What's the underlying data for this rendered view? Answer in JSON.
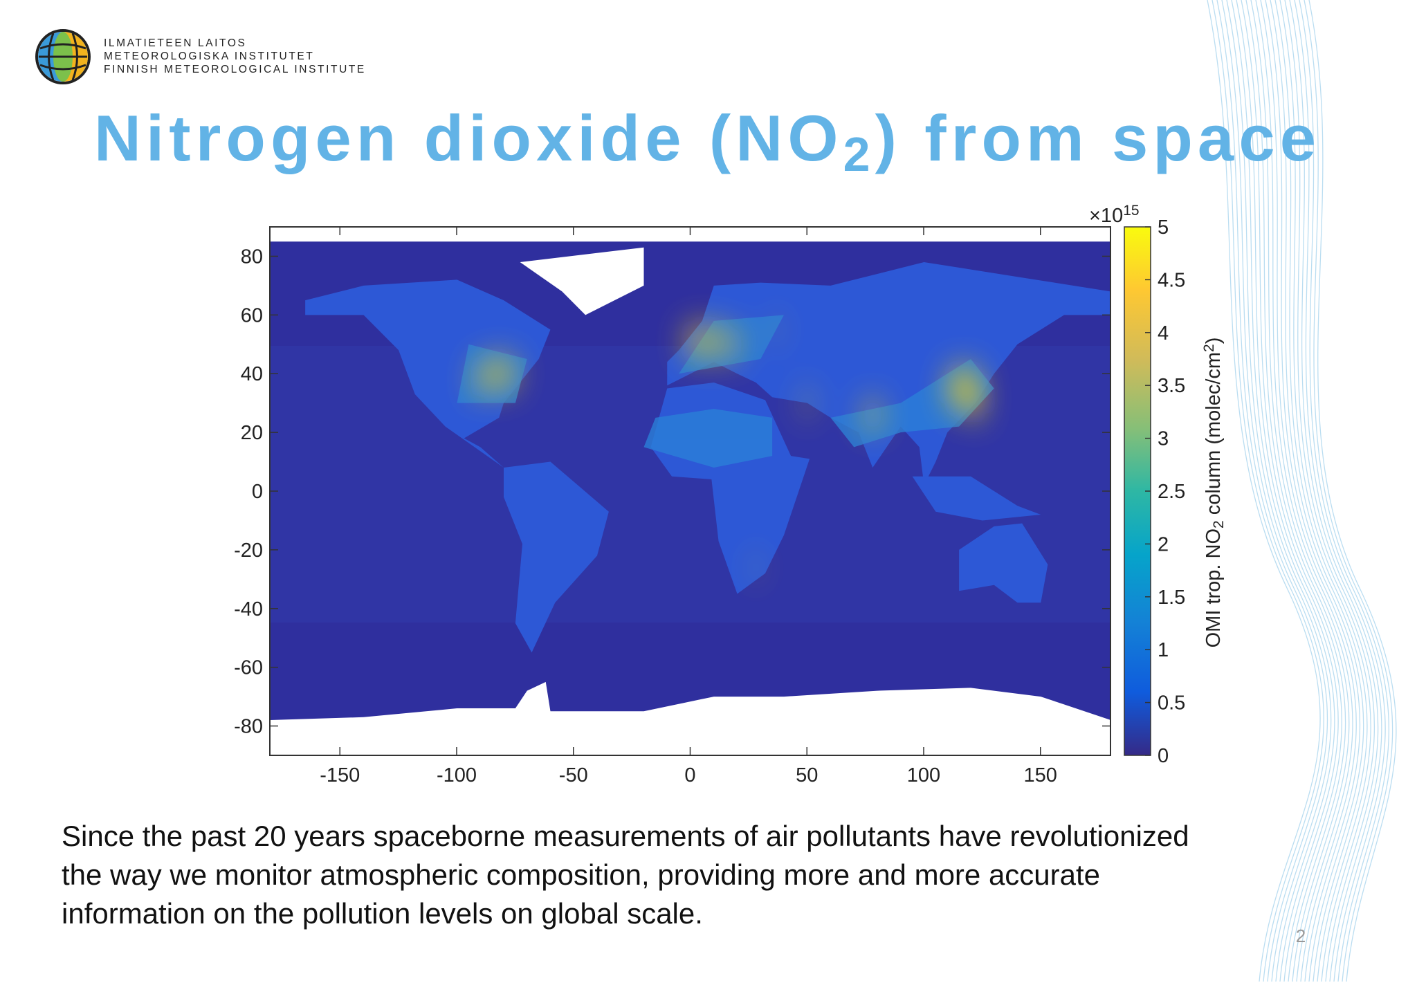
{
  "header": {
    "logo_lines": [
      "ILMATIETEEN LAITOS",
      "METEOROLOGISKA INSTITUTET",
      "FINNISH METEOROLOGICAL INSTITUTE"
    ]
  },
  "title": {
    "parts": [
      "Nitrogen dioxide (NO",
      "2",
      ") from space"
    ]
  },
  "figure": {
    "map": {
      "xlim": [
        -180,
        180
      ],
      "ylim": [
        -90,
        90
      ],
      "xticks": [
        -150,
        -100,
        -50,
        0,
        50,
        100,
        150
      ],
      "yticks": [
        80,
        60,
        40,
        20,
        0,
        -20,
        -40,
        -60,
        -80
      ]
    },
    "colorbar": {
      "lim": [
        0,
        5
      ],
      "ticks": [
        0,
        0.5,
        1,
        1.5,
        2,
        2.5,
        3,
        3.5,
        4,
        4.5,
        5
      ],
      "exponent": [
        "×10",
        "15"
      ],
      "label": [
        "OMI trop. NO",
        "2",
        " column (molec/cm",
        "2",
        ")"
      ]
    }
  },
  "body": {
    "lines": [
      "Since the past 20 years spaceborne measurements of air pollutants have revolutionized",
      "the way we monitor atmospheric composition, providing more and more accurate",
      "information on the pollution levels on global scale."
    ]
  },
  "page_number": 2
}
